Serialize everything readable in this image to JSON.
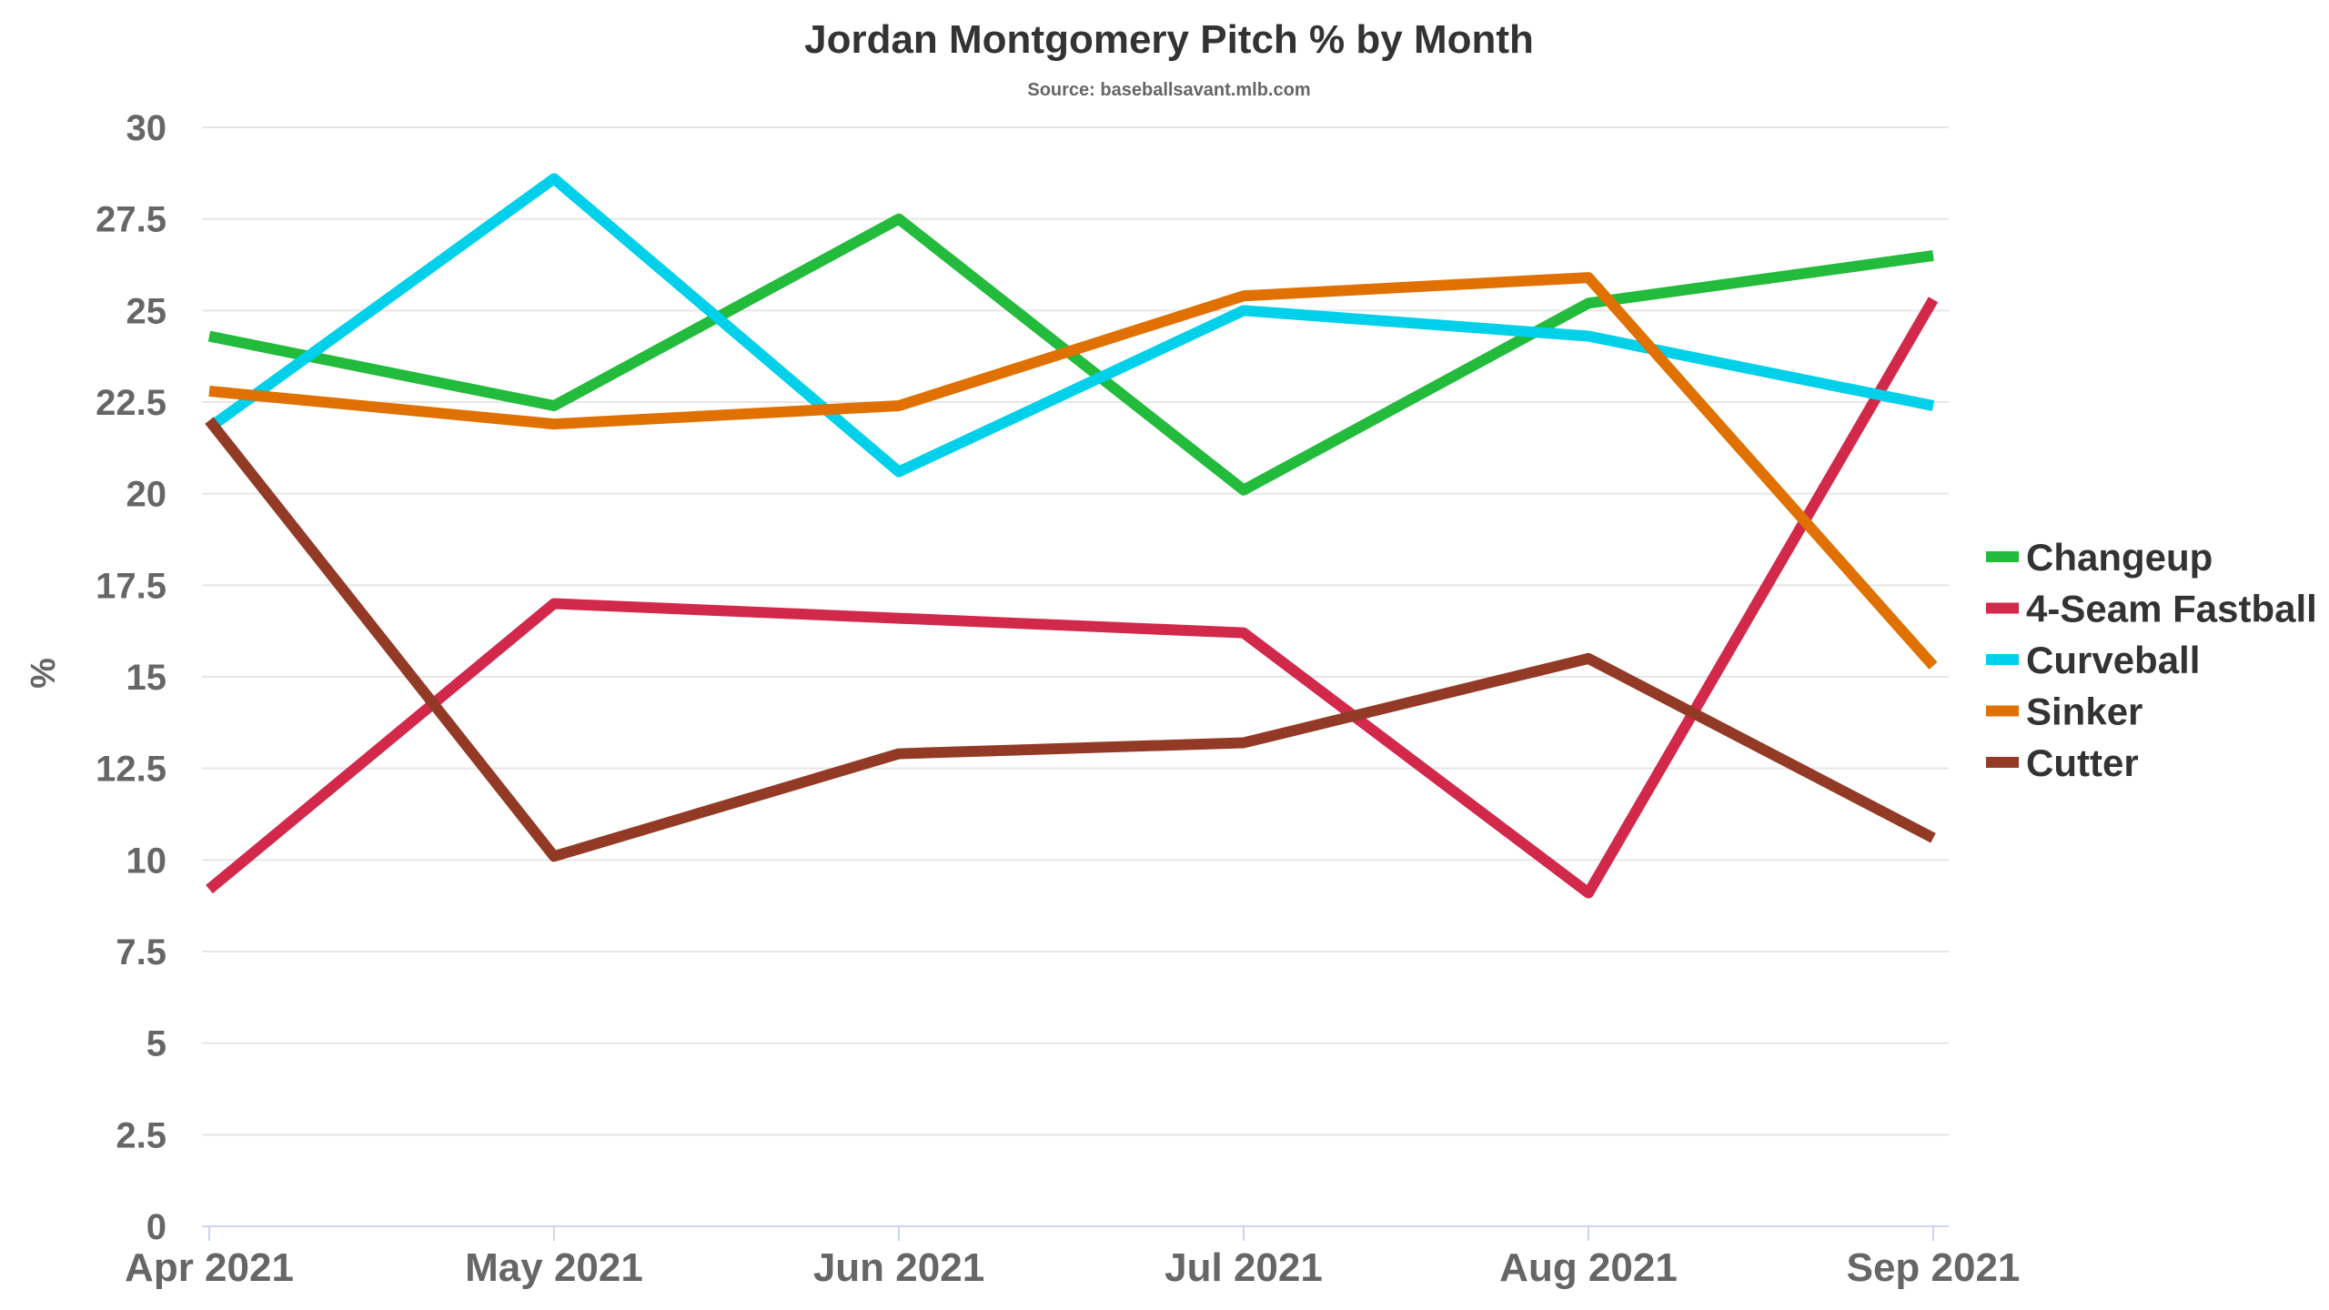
{
  "chart_data": {
    "type": "line",
    "title": "Jordan Montgomery Pitch % by Month",
    "subtitle": "Source: baseballsavant.mlb.com",
    "xlabel": "",
    "ylabel": "%",
    "categories": [
      "Apr 2021",
      "May 2021",
      "Jun 2021",
      "Jul 2021",
      "Aug 2021",
      "Sep 2021"
    ],
    "ylim": [
      0,
      30
    ],
    "yticks": [
      "0",
      "2.5",
      "5",
      "7.5",
      "10",
      "12.5",
      "15",
      "17.5",
      "20",
      "22.5",
      "25",
      "27.5",
      "30"
    ],
    "grid": true,
    "legend_position": "right",
    "series": [
      {
        "name": "Changeup",
        "color": "#22bb3b",
        "values": [
          24.3,
          22.4,
          27.5,
          20.1,
          25.2,
          26.5
        ]
      },
      {
        "name": "4-Seam Fastball",
        "color": "#d2294b",
        "values": [
          9.2,
          17.0,
          16.6,
          16.2,
          9.1,
          25.3
        ]
      },
      {
        "name": "Curveball",
        "color": "#00d0ea",
        "values": [
          21.8,
          28.6,
          20.6,
          25.0,
          24.3,
          22.4
        ]
      },
      {
        "name": "Sinker",
        "color": "#e07000",
        "values": [
          22.8,
          21.9,
          22.4,
          25.4,
          25.9,
          15.3
        ]
      },
      {
        "name": "Cutter",
        "color": "#933a26",
        "values": [
          22.0,
          10.1,
          12.9,
          13.2,
          15.5,
          10.6
        ]
      }
    ]
  }
}
